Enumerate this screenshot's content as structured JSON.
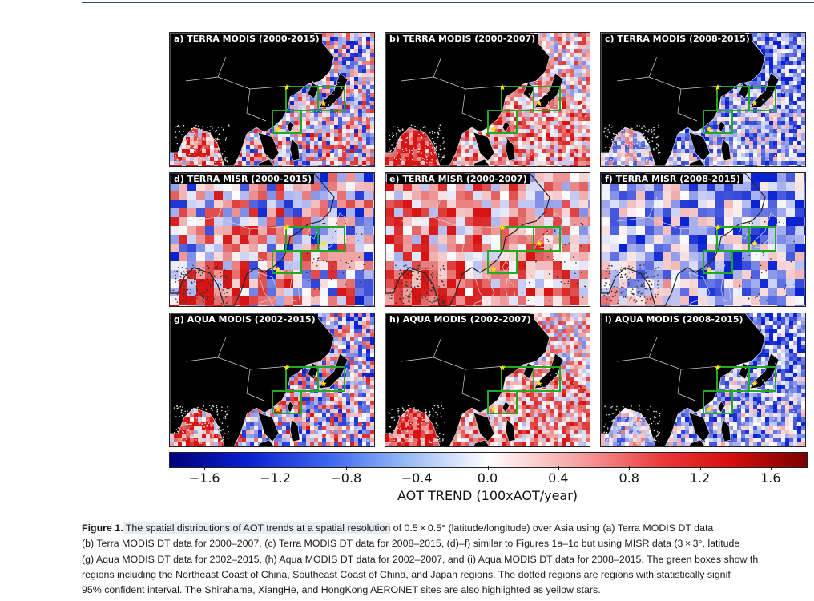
{
  "panels": [
    {
      "title": "a) TERRA MODIS (2000-2015)",
      "kind": "modis",
      "bias": "mixed"
    },
    {
      "title": "b) TERRA MODIS (2000-2007)",
      "kind": "modis",
      "bias": "red"
    },
    {
      "title": "c) TERRA MODIS (2008-2015)",
      "kind": "modis",
      "bias": "blue"
    },
    {
      "title": "d) TERRA MISR (2000-2015)",
      "kind": "misr",
      "bias": "mixed"
    },
    {
      "title": "e) TERRA MISR (2000-2007)",
      "kind": "misr",
      "bias": "red"
    },
    {
      "title": "f) TERRA MISR (2008-2015)",
      "kind": "misr",
      "bias": "blue"
    },
    {
      "title": "g) AQUA MODIS (2002-2015)",
      "kind": "modis",
      "bias": "mixed"
    },
    {
      "title": "h) AQUA MODIS (2002-2007)",
      "kind": "modis",
      "bias": "red"
    },
    {
      "title": "i) AQUA MODIS (2008-2015)",
      "kind": "modis",
      "bias": "blue"
    }
  ],
  "colorbar": {
    "ticks": [
      "−1.6",
      "−1.2",
      "−0.8",
      "−0.4",
      "0.0",
      "0.4",
      "0.8",
      "1.2",
      "1.6"
    ],
    "tick_values": [
      -1.6,
      -1.2,
      -0.8,
      -0.4,
      0.0,
      0.4,
      0.8,
      1.2,
      1.6
    ],
    "range": [
      -1.8,
      1.8
    ],
    "label": "AOT TREND (100xAOT/year)"
  },
  "caption": {
    "figure_label": "Figure 1.",
    "line1_highlight": " The spatial distributions of AOT trends at a spatial resolution",
    "line1_rest": " of 0.5 × 0.5° (latitude/longitude) over Asia using (a) Terra MODIS DT data",
    "line2": "(b) Terra MODIS DT data for 2000–2007, (c) Terra MODIS DT data for 2008–2015, (d)–f) similar to Figures 1a–1c but using MISR data (3 × 3°, latitude",
    "line3": "(g) Aqua MODIS DT data for 2002–2015, (h) Aqua MODIS DT data for 2002–2007, and (i) Aqua MODIS DT data for 2008–2015. The green boxes show th",
    "line4": "regions including the Northeast Coast of China, Southeast Coast of China, and Japan regions. The dotted regions are regions with statistically signif",
    "line5": "95% confident interval. The Shirahama, XiangHe, and HongKong AERONET sites are also highlighted as yellow stars."
  },
  "colors": {
    "land": "#000000",
    "box": "#1faa1f",
    "star": "#ffe600",
    "positive": "#d60e0e",
    "negative": "#0a1fd0"
  }
}
